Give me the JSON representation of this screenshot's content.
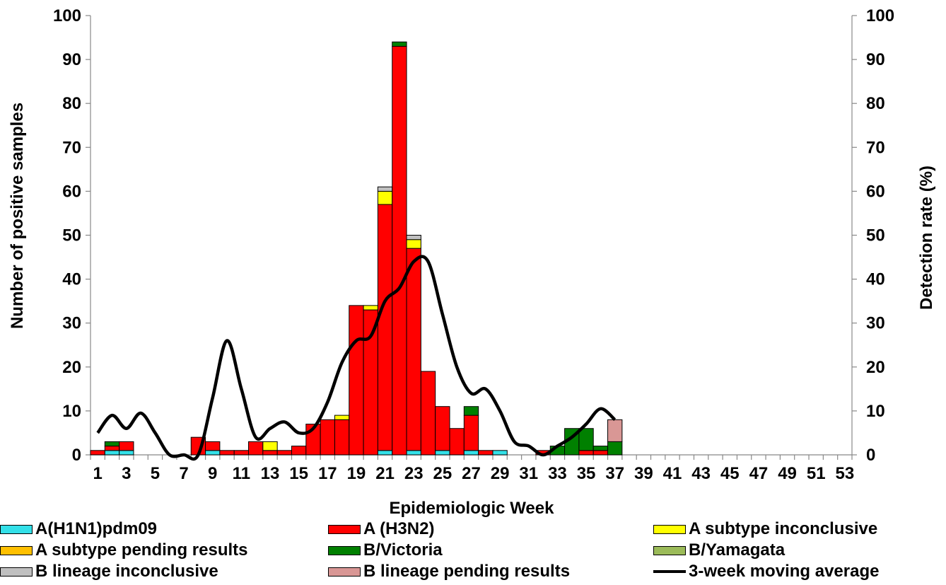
{
  "chart_data": {
    "type": "bar",
    "stacked": true,
    "xlabel": "Epidemiologic Week",
    "ylabel": "Number of positive samples",
    "y2label": "Detection rate (%)",
    "ylim": [
      0,
      100
    ],
    "y2lim": [
      0,
      100
    ],
    "yticks": [
      0,
      10,
      20,
      30,
      40,
      50,
      60,
      70,
      80,
      90,
      100
    ],
    "y2ticks": [
      0,
      10,
      20,
      30,
      40,
      50,
      60,
      70,
      80,
      90,
      100
    ],
    "xticks": [
      "1",
      "3",
      "5",
      "7",
      "9",
      "11",
      "13",
      "15",
      "17",
      "19",
      "21",
      "23",
      "25",
      "27",
      "29",
      "31",
      "33",
      "35",
      "37",
      "39",
      "41",
      "43",
      "45",
      "47",
      "49",
      "51",
      "53"
    ],
    "weeks": [
      1,
      2,
      3,
      4,
      5,
      6,
      7,
      8,
      9,
      10,
      11,
      12,
      13,
      14,
      15,
      16,
      17,
      18,
      19,
      20,
      21,
      22,
      23,
      24,
      25,
      26,
      27,
      28,
      29,
      30,
      31,
      32,
      33,
      34,
      35,
      36,
      37,
      38,
      39,
      40,
      41,
      42,
      43,
      44,
      45,
      46,
      47,
      48,
      49,
      50,
      51,
      52,
      53
    ],
    "series": [
      {
        "name": "A(H1N1)pdm09",
        "color": "#33e0e8",
        "values": [
          0,
          1,
          1,
          0,
          0,
          0,
          0,
          0,
          1,
          0,
          0,
          0,
          0,
          0,
          0,
          0,
          0,
          0,
          0,
          0,
          1,
          0,
          1,
          0,
          1,
          0,
          1,
          0,
          1,
          0,
          0,
          0,
          0,
          0,
          0,
          0,
          0,
          0,
          0,
          0,
          0,
          0,
          0,
          0,
          0,
          0,
          0,
          0,
          0,
          0,
          0,
          0,
          0
        ]
      },
      {
        "name": "A (H3N2)",
        "color": "#ff0000",
        "values": [
          1,
          1,
          2,
          0,
          0,
          0,
          0,
          4,
          2,
          1,
          1,
          3,
          1,
          1,
          2,
          7,
          8,
          8,
          34,
          33,
          56,
          93,
          46,
          19,
          10,
          6,
          8,
          1,
          0,
          0,
          0,
          1,
          0,
          0,
          1,
          1,
          0,
          0,
          0,
          0,
          0,
          0,
          0,
          0,
          0,
          0,
          0,
          0,
          0,
          0,
          0,
          0,
          0
        ]
      },
      {
        "name": "A subtype inconclusive",
        "color": "#ffff00",
        "values": [
          0,
          0,
          0,
          0,
          0,
          0,
          0,
          0,
          0,
          0,
          0,
          0,
          2,
          0,
          0,
          0,
          0,
          1,
          0,
          1,
          3,
          0,
          2,
          0,
          0,
          0,
          0,
          0,
          0,
          0,
          0,
          0,
          0,
          0,
          0,
          0,
          0,
          0,
          0,
          0,
          0,
          0,
          0,
          0,
          0,
          0,
          0,
          0,
          0,
          0,
          0,
          0,
          0
        ]
      },
      {
        "name": "A subtype pending results",
        "color": "#ffc000",
        "values": [
          0,
          0,
          0,
          0,
          0,
          0,
          0,
          0,
          0,
          0,
          0,
          0,
          0,
          0,
          0,
          0,
          0,
          0,
          0,
          0,
          0,
          0,
          0,
          0,
          0,
          0,
          0,
          0,
          0,
          0,
          0,
          0,
          0,
          0,
          0,
          0,
          0,
          0,
          0,
          0,
          0,
          0,
          0,
          0,
          0,
          0,
          0,
          0,
          0,
          0,
          0,
          0,
          0
        ]
      },
      {
        "name": "B/Victoria",
        "color": "#008000",
        "values": [
          0,
          1,
          0,
          0,
          0,
          0,
          0,
          0,
          0,
          0,
          0,
          0,
          0,
          0,
          0,
          0,
          0,
          0,
          0,
          0,
          0,
          1,
          0,
          0,
          0,
          0,
          2,
          0,
          0,
          0,
          0,
          0,
          2,
          6,
          5,
          1,
          3,
          0,
          0,
          0,
          0,
          0,
          0,
          0,
          0,
          0,
          0,
          0,
          0,
          0,
          0,
          0,
          0
        ]
      },
      {
        "name": "B/Yamagata",
        "color": "#9bbb59",
        "values": [
          0,
          0,
          0,
          0,
          0,
          0,
          0,
          0,
          0,
          0,
          0,
          0,
          0,
          0,
          0,
          0,
          0,
          0,
          0,
          0,
          0,
          0,
          0,
          0,
          0,
          0,
          0,
          0,
          0,
          0,
          0,
          0,
          0,
          0,
          0,
          0,
          0,
          0,
          0,
          0,
          0,
          0,
          0,
          0,
          0,
          0,
          0,
          0,
          0,
          0,
          0,
          0,
          0
        ]
      },
      {
        "name": "B lineage inconclusive",
        "color": "#c0c0c0",
        "values": [
          0,
          0,
          0,
          0,
          0,
          0,
          0,
          0,
          0,
          0,
          0,
          0,
          0,
          0,
          0,
          0,
          0,
          0,
          0,
          0,
          1,
          0,
          1,
          0,
          0,
          0,
          0,
          0,
          0,
          0,
          0,
          0,
          0,
          0,
          0,
          0,
          0,
          0,
          0,
          0,
          0,
          0,
          0,
          0,
          0,
          0,
          0,
          0,
          0,
          0,
          0,
          0,
          0
        ]
      },
      {
        "name": "B lineage pending results",
        "color": "#d99795",
        "values": [
          0,
          0,
          0,
          0,
          0,
          0,
          0,
          0,
          0,
          0,
          0,
          0,
          0,
          0,
          0,
          0,
          0,
          0,
          0,
          0,
          0,
          0,
          0,
          0,
          0,
          0,
          0,
          0,
          0,
          0,
          0,
          0,
          0,
          0,
          0,
          0,
          5,
          0,
          0,
          0,
          0,
          0,
          0,
          0,
          0,
          0,
          0,
          0,
          0,
          0,
          0,
          0,
          0
        ]
      }
    ],
    "line": {
      "name": "3-week moving average",
      "axis": "right",
      "color": "#000000",
      "weeks": [
        1,
        2,
        3,
        4,
        5,
        6,
        7,
        8,
        9,
        10,
        11,
        12,
        13,
        14,
        15,
        16,
        17,
        18,
        19,
        20,
        21,
        22,
        23,
        24,
        25,
        26,
        27,
        28,
        29,
        30,
        31,
        32,
        33,
        34,
        35,
        36,
        37
      ],
      "values": [
        5,
        9,
        6,
        9.5,
        5,
        0,
        0,
        0,
        13,
        26,
        15,
        4,
        6,
        7.5,
        5,
        6,
        12,
        21,
        26,
        27,
        35,
        38,
        44,
        44,
        32,
        20,
        14,
        15,
        10,
        3,
        2,
        0,
        2,
        4,
        7,
        10.5,
        8
      ]
    },
    "legend_position": "bottom"
  }
}
